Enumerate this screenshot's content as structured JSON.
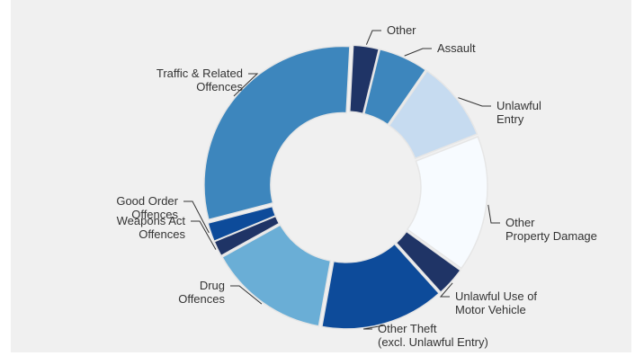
{
  "chart_data": {
    "type": "pie",
    "title": "",
    "slices": [
      {
        "label": [
          "Other"
        ],
        "value": 3.0,
        "color": "#1f3466"
      },
      {
        "label": [
          "Assault"
        ],
        "value": 5.8,
        "color": "#3d86bd"
      },
      {
        "label": [
          "Unlawful",
          "Entry"
        ],
        "value": 9.4,
        "color": "#c6dbf0"
      },
      {
        "label": [
          "Other",
          "Property Damage"
        ],
        "value": 15.9,
        "color": "#f7fbff"
      },
      {
        "label": [
          "Unlawful Use of",
          "Motor Vehicle"
        ],
        "value": 3.4,
        "color": "#1f3466"
      },
      {
        "label": [
          "Other Theft",
          "(excl. Unlawful Entry)"
        ],
        "value": 14.5,
        "color": "#0d4b9a"
      },
      {
        "label": [
          "Drug",
          "Offences"
        ],
        "value": 14.1,
        "color": "#6aaed6"
      },
      {
        "label": [
          "Weapons Act",
          "Offences"
        ],
        "value": 1.8,
        "color": "#1f3466"
      },
      {
        "label": [
          "Good Order",
          "Offences"
        ],
        "value": 2.2,
        "color": "#0d4b9a"
      },
      {
        "label": [
          "Traffic & Related",
          "Offences"
        ],
        "value": 29.9,
        "color": "#3d86bd"
      }
    ]
  }
}
